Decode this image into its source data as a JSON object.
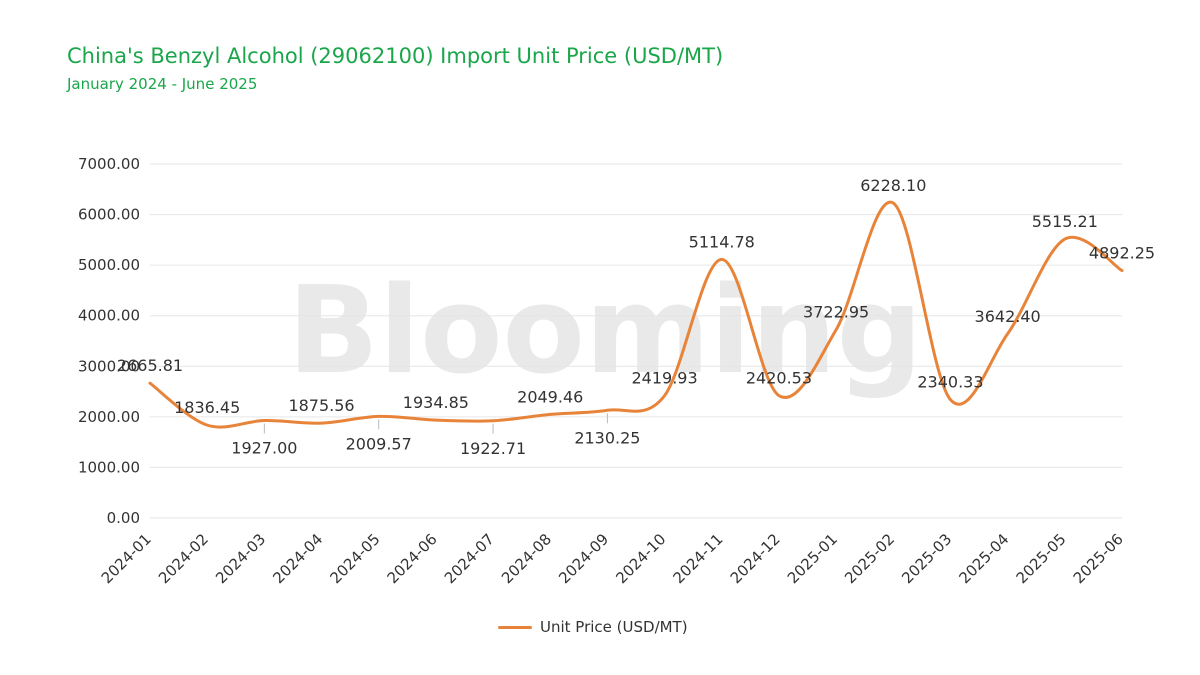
{
  "header": {
    "title": "China's Benzyl Alcohol (29062100) Import Unit Price (USD/MT)",
    "subtitle": "January 2024 - June 2025"
  },
  "watermark": {
    "text": "Blooming"
  },
  "colors": {
    "title": "#1aa64a",
    "series": "#e8843a",
    "grid": "#e6e6e6",
    "axis_text": "#333333",
    "watermark": "#e9e9e9"
  },
  "chart_data": {
    "type": "line",
    "title": "China's Benzyl Alcohol (29062100) Import Unit Price (USD/MT)",
    "subtitle": "January 2024 - June 2025",
    "xlabel": "",
    "ylabel": "",
    "x": [
      "2024-01",
      "2024-02",
      "2024-03",
      "2024-04",
      "2024-05",
      "2024-06",
      "2024-07",
      "2024-08",
      "2024-09",
      "2024-10",
      "2024-11",
      "2024-12",
      "2025-01",
      "2025-02",
      "2025-03",
      "2025-04",
      "2025-05",
      "2025-06"
    ],
    "series": [
      {
        "name": "Unit Price (USD/MT)",
        "values": [
          2665.81,
          1836.45,
          1927.0,
          1875.56,
          2009.57,
          1934.85,
          1922.71,
          2049.46,
          2130.25,
          2419.93,
          5114.78,
          2420.53,
          3722.95,
          6228.1,
          2340.33,
          3642.4,
          5515.21,
          4892.25
        ],
        "labels": [
          "2665.81",
          "1836.45",
          "1927.00",
          "1875.56",
          "2009.57",
          "1934.85",
          "1922.71",
          "2049.46",
          "2130.25",
          "2419.93",
          "5114.78",
          "2420.53",
          "3722.95",
          "6228.10",
          "2340.33",
          "3642.40",
          "5515.21",
          "4892.25"
        ],
        "label_position": [
          "above",
          "above",
          "below",
          "above",
          "below",
          "above",
          "below",
          "above",
          "below",
          "above",
          "above",
          "above",
          "above",
          "above",
          "above",
          "above",
          "above",
          "above"
        ]
      }
    ],
    "ylim": [
      0,
      7000
    ],
    "yticks": [
      "0.00",
      "1000.00",
      "2000.00",
      "3000.00",
      "4000.00",
      "5000.00",
      "6000.00",
      "7000.00"
    ],
    "grid": true,
    "smooth": true,
    "legend": "bottom-center"
  }
}
